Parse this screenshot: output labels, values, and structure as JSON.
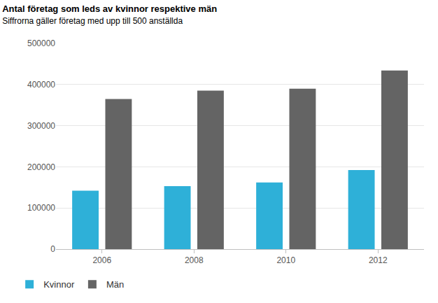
{
  "chart_data": {
    "type": "bar",
    "title": "Antal företag som leds av kvinnor respektive män",
    "subtitle": "Siffrorna gäller företag med upp till 500 anställda",
    "categories": [
      "2006",
      "2008",
      "2010",
      "2012"
    ],
    "series": [
      {
        "name": "Kvinnor",
        "color": "#2eb0d8",
        "values": [
          142000,
          153000,
          162000,
          192000
        ]
      },
      {
        "name": "Män",
        "color": "#646464",
        "values": [
          365000,
          385000,
          390000,
          434000
        ]
      }
    ],
    "ylim": [
      0,
      500000
    ],
    "yticks": [
      0,
      100000,
      200000,
      300000,
      400000,
      500000
    ],
    "grid": true,
    "legend": "bottom left"
  }
}
